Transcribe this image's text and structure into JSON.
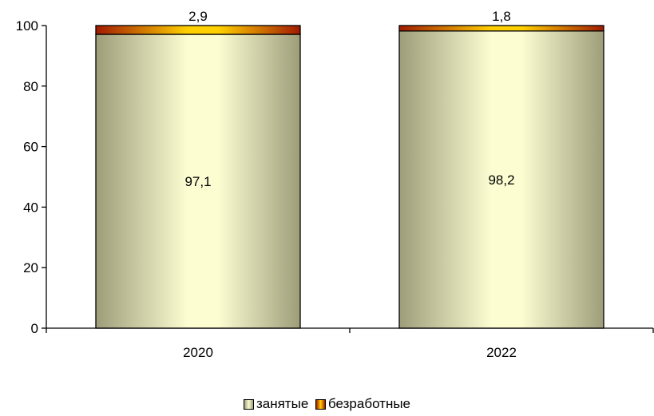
{
  "chart_data": {
    "type": "bar",
    "stacked": true,
    "categories": [
      "2020",
      "2022"
    ],
    "series": [
      {
        "name": "занятые",
        "values": [
          97.1,
          98.2
        ],
        "labels": [
          "97,1",
          "98,2"
        ],
        "color": "#fbfbd0"
      },
      {
        "name": "безработные",
        "values": [
          2.9,
          1.8
        ],
        "labels": [
          "2,9",
          "1,8"
        ],
        "color": "#f5c000"
      }
    ],
    "ylim": [
      0,
      100
    ],
    "yticks": [
      0,
      20,
      40,
      60,
      80,
      100
    ],
    "grid": false,
    "legend_position": "bottom"
  }
}
